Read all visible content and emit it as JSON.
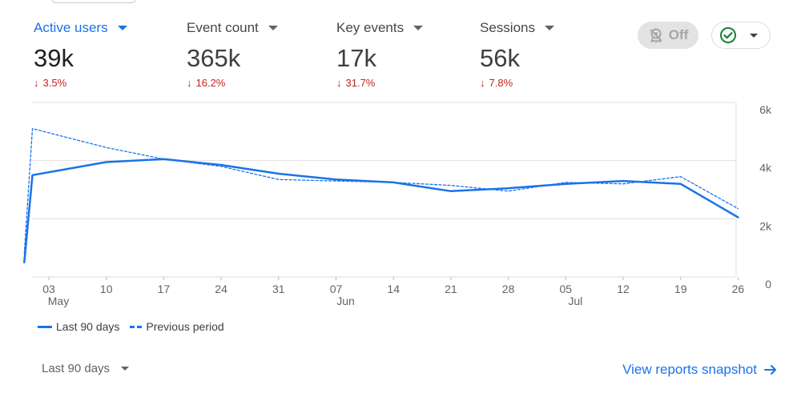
{
  "metrics": [
    {
      "label": "Active users",
      "value": "39k",
      "delta": "3.5%",
      "active": true
    },
    {
      "label": "Event count",
      "value": "365k",
      "delta": "16.2%",
      "active": false
    },
    {
      "label": "Key events",
      "value": "17k",
      "delta": "31.7%",
      "active": false
    },
    {
      "label": "Sessions",
      "value": "56k",
      "delta": "7.8%",
      "active": false
    }
  ],
  "toolbar": {
    "insights_toggle_label": "Off",
    "insights_icon": "award-ribbon-icon",
    "status_icon": "check-circle-icon"
  },
  "colors": {
    "accent": "#1a73e8",
    "negative": "#c5221f",
    "check_green": "#188038"
  },
  "chart_data": {
    "type": "line",
    "x_tick_labels": [
      {
        "day": "03",
        "month": "May"
      },
      {
        "day": "10",
        "month": ""
      },
      {
        "day": "17",
        "month": ""
      },
      {
        "day": "24",
        "month": ""
      },
      {
        "day": "31",
        "month": ""
      },
      {
        "day": "07",
        "month": "Jun"
      },
      {
        "day": "14",
        "month": ""
      },
      {
        "day": "21",
        "month": ""
      },
      {
        "day": "28",
        "month": ""
      },
      {
        "day": "05",
        "month": "Jul"
      },
      {
        "day": "12",
        "month": ""
      },
      {
        "day": "19",
        "month": ""
      },
      {
        "day": "26",
        "month": ""
      }
    ],
    "y_ticks": [
      {
        "value": 0,
        "label": "0"
      },
      {
        "value": 2000,
        "label": "2k"
      },
      {
        "value": 4000,
        "label": "4k"
      },
      {
        "value": 6000,
        "label": "6k"
      }
    ],
    "ylim": [
      0,
      6000
    ],
    "grid": true,
    "series": [
      {
        "name": "Last 90 days",
        "style": "solid",
        "points": [
          {
            "x": "2024-04-30",
            "y": 500
          },
          {
            "x": "2024-05-01",
            "y": 3500
          },
          {
            "x": "2024-05-10",
            "y": 3950
          },
          {
            "x": "2024-05-17",
            "y": 4050
          },
          {
            "x": "2024-05-24",
            "y": 3850
          },
          {
            "x": "2024-05-31",
            "y": 3550
          },
          {
            "x": "2024-06-07",
            "y": 3350
          },
          {
            "x": "2024-06-14",
            "y": 3250
          },
          {
            "x": "2024-06-21",
            "y": 2950
          },
          {
            "x": "2024-06-28",
            "y": 3050
          },
          {
            "x": "2024-07-05",
            "y": 3200
          },
          {
            "x": "2024-07-12",
            "y": 3300
          },
          {
            "x": "2024-07-19",
            "y": 3200
          },
          {
            "x": "2024-07-26",
            "y": 2050
          }
        ]
      },
      {
        "name": "Previous period",
        "style": "dashed",
        "points": [
          {
            "x": "2024-04-30",
            "y": 800
          },
          {
            "x": "2024-05-01",
            "y": 5100
          },
          {
            "x": "2024-05-10",
            "y": 4450
          },
          {
            "x": "2024-05-17",
            "y": 4050
          },
          {
            "x": "2024-05-24",
            "y": 3800
          },
          {
            "x": "2024-05-31",
            "y": 3350
          },
          {
            "x": "2024-06-07",
            "y": 3300
          },
          {
            "x": "2024-06-14",
            "y": 3250
          },
          {
            "x": "2024-06-21",
            "y": 3150
          },
          {
            "x": "2024-06-28",
            "y": 2950
          },
          {
            "x": "2024-07-05",
            "y": 3250
          },
          {
            "x": "2024-07-12",
            "y": 3200
          },
          {
            "x": "2024-07-19",
            "y": 3450
          },
          {
            "x": "2024-07-26",
            "y": 2350
          }
        ]
      }
    ]
  },
  "legend": [
    {
      "label": "Last 90 days",
      "style": "solid"
    },
    {
      "label": "Previous period",
      "style": "dashed"
    }
  ],
  "footer": {
    "range_label": "Last 90 days",
    "link_label": "View reports snapshot",
    "link_icon": "arrow-right-icon"
  }
}
